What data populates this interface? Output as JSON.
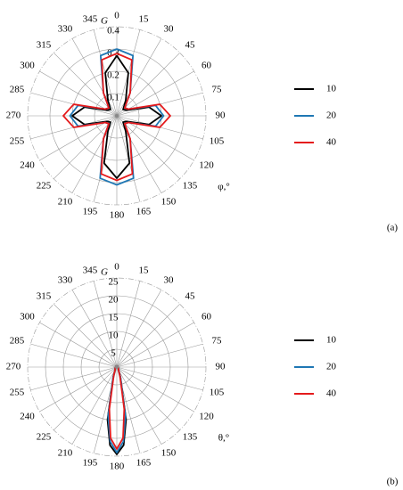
{
  "chart_data": [
    {
      "type": "polar",
      "panel_label": "(a)",
      "radial_label": "G",
      "angle_label": "φ,°",
      "xlim": [
        0,
        360
      ],
      "xticks": [
        0,
        15,
        30,
        45,
        60,
        75,
        90,
        105,
        120,
        135,
        150,
        165,
        180,
        195,
        210,
        225,
        240,
        255,
        270,
        285,
        300,
        315,
        330,
        345
      ],
      "ylim": [
        0,
        0.4
      ],
      "yticks": [
        0.1,
        0.2,
        0.3,
        0.4
      ],
      "grid": true,
      "x": [
        0,
        15,
        30,
        45,
        60,
        75,
        90,
        105,
        120,
        135,
        150,
        165,
        180,
        195,
        210,
        225,
        240,
        255,
        270,
        285,
        300,
        315,
        330,
        345,
        360
      ],
      "series": [
        {
          "name": "10",
          "color": "#000000",
          "values": [
            0.27,
            0.2,
            0.08,
            0.04,
            0.05,
            0.15,
            0.2,
            0.15,
            0.05,
            0.04,
            0.08,
            0.22,
            0.28,
            0.22,
            0.08,
            0.04,
            0.05,
            0.15,
            0.2,
            0.15,
            0.05,
            0.04,
            0.08,
            0.2,
            0.27
          ]
        },
        {
          "name": "20",
          "color": "#1f77b4",
          "values": [
            0.3,
            0.28,
            0.12,
            0.05,
            0.06,
            0.18,
            0.21,
            0.18,
            0.06,
            0.05,
            0.12,
            0.29,
            0.31,
            0.29,
            0.12,
            0.05,
            0.06,
            0.18,
            0.21,
            0.18,
            0.06,
            0.05,
            0.12,
            0.28,
            0.3
          ]
        },
        {
          "name": "40",
          "color": "#e41a1c",
          "values": [
            0.28,
            0.26,
            0.12,
            0.05,
            0.06,
            0.2,
            0.24,
            0.2,
            0.06,
            0.05,
            0.12,
            0.27,
            0.29,
            0.27,
            0.12,
            0.05,
            0.06,
            0.2,
            0.24,
            0.2,
            0.06,
            0.05,
            0.12,
            0.26,
            0.28
          ]
        }
      ]
    },
    {
      "type": "polar",
      "panel_label": "(b)",
      "radial_label": "G",
      "angle_label": "θ,°",
      "xlim": [
        0,
        360
      ],
      "xticks": [
        0,
        15,
        30,
        45,
        60,
        75,
        90,
        105,
        120,
        135,
        150,
        165,
        180,
        195,
        210,
        225,
        240,
        255,
        270,
        285,
        300,
        315,
        330,
        345
      ],
      "ylim": [
        0,
        25
      ],
      "yticks": [
        5,
        10,
        15,
        20,
        25
      ],
      "grid": true,
      "x": [
        0,
        30,
        60,
        90,
        120,
        150,
        160,
        170,
        175,
        180,
        185,
        190,
        200,
        210,
        240,
        270,
        300,
        330,
        360
      ],
      "series": [
        {
          "name": "10",
          "color": "#000000",
          "values": [
            0.3,
            0.3,
            0.3,
            0.3,
            0.5,
            1,
            3,
            15,
            22,
            24.5,
            22,
            15,
            3,
            1,
            0.5,
            0.3,
            0.3,
            0.3,
            0.3
          ]
        },
        {
          "name": "20",
          "color": "#1f77b4",
          "values": [
            0.3,
            0.3,
            0.3,
            0.3,
            0.5,
            1,
            3,
            14,
            21,
            24,
            21,
            14,
            3,
            1,
            0.5,
            0.3,
            0.3,
            0.3,
            0.3
          ]
        },
        {
          "name": "40",
          "color": "#e41a1c",
          "values": [
            0.3,
            0.3,
            0.3,
            0.3,
            0.5,
            1,
            2.5,
            12,
            20,
            23,
            20,
            12,
            2.5,
            1,
            0.5,
            0.3,
            0.3,
            0.3,
            0.3
          ]
        }
      ]
    }
  ]
}
